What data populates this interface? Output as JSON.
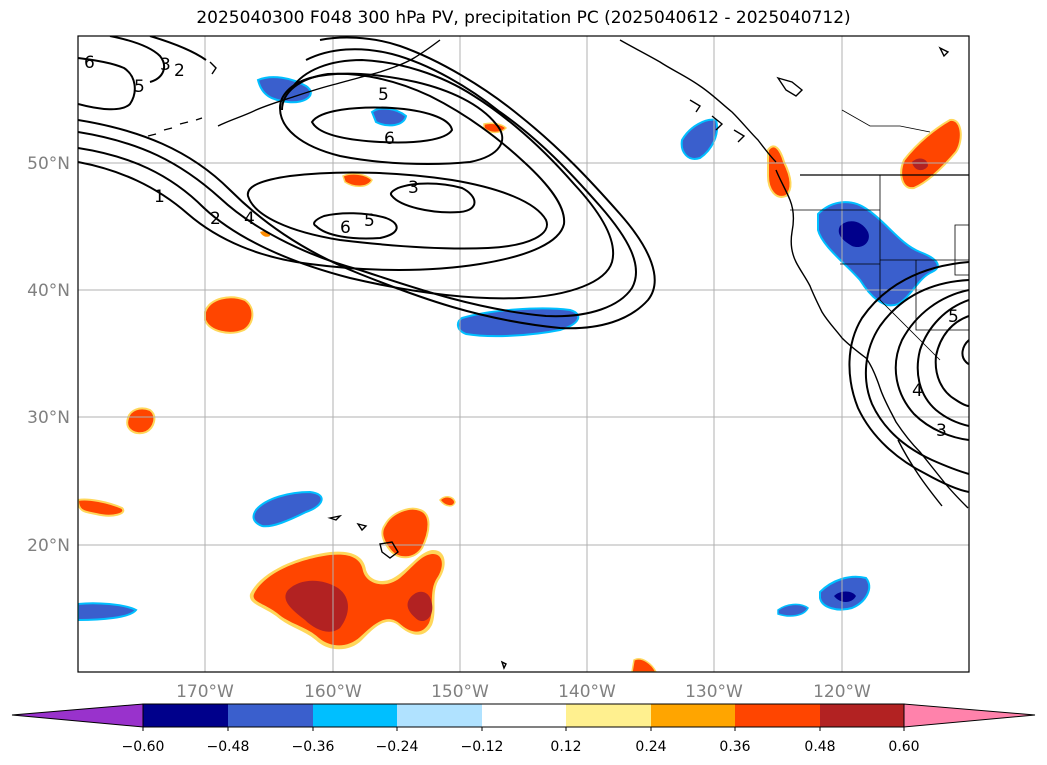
{
  "title": "2025040300 F048 300 hPa PV, precipitation PC (2025040612 - 2025040712)",
  "lat_ticks": [
    "50°N",
    "40°N",
    "30°N",
    "20°N"
  ],
  "lon_ticks": [
    "170°W",
    "160°W",
    "150°W",
    "140°W",
    "130°W",
    "120°W"
  ],
  "pv_contour_labels": [
    "6",
    "3",
    "2",
    "5",
    "5",
    "6",
    "3",
    "1",
    "2",
    "4",
    "6",
    "5",
    "5",
    "4",
    "3"
  ],
  "colorbar": {
    "tick_labels": [
      "−0.60",
      "−0.48",
      "−0.36",
      "−0.24",
      "−0.12",
      "0.12",
      "0.24",
      "0.36",
      "0.48",
      "0.60"
    ],
    "colors": [
      "#9932cc",
      "#00008b",
      "#3a5fcd",
      "#00bfff",
      "#b0e2ff",
      "#ffffff",
      "#fff08f",
      "#ffa500",
      "#ff4500",
      "#b22222",
      "#ff82ab"
    ]
  },
  "colors": {
    "coast": "#000000",
    "grid": "#b0b0b0",
    "pv_contour": "#000000"
  }
}
